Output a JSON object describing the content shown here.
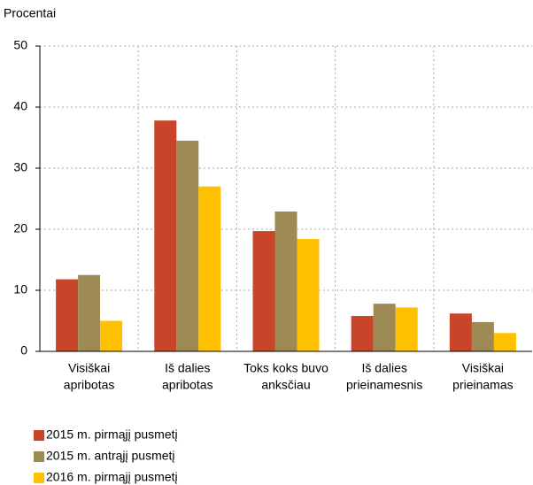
{
  "chart_data": {
    "type": "bar",
    "y_label": "Procentai",
    "categories": [
      [
        "Visiškai",
        "apribotas"
      ],
      [
        "Iš dalies",
        "apribotas"
      ],
      [
        "Toks koks buvo",
        "anksčiau"
      ],
      [
        "Iš dalies",
        "prieinamesnis"
      ],
      [
        "Visiškai",
        "prieinamas"
      ]
    ],
    "series": [
      {
        "name": "2015 m. pirmąjį pusmetį",
        "color": "#c9452a",
        "values": [
          11.8,
          37.8,
          19.7,
          5.8,
          6.2
        ]
      },
      {
        "name": "2015 m. antrąjį pusmetį",
        "color": "#9e8a55",
        "values": [
          12.5,
          34.5,
          22.9,
          7.8,
          4.8
        ]
      },
      {
        "name": "2016 m. pirmąjį pusmetį",
        "color": "#ffc000",
        "values": [
          5.0,
          27.0,
          18.4,
          7.2,
          3.0
        ]
      }
    ],
    "ylim": [
      0,
      50
    ],
    "yticks": [
      0,
      10,
      20,
      30,
      40,
      50
    ],
    "grid": true
  }
}
